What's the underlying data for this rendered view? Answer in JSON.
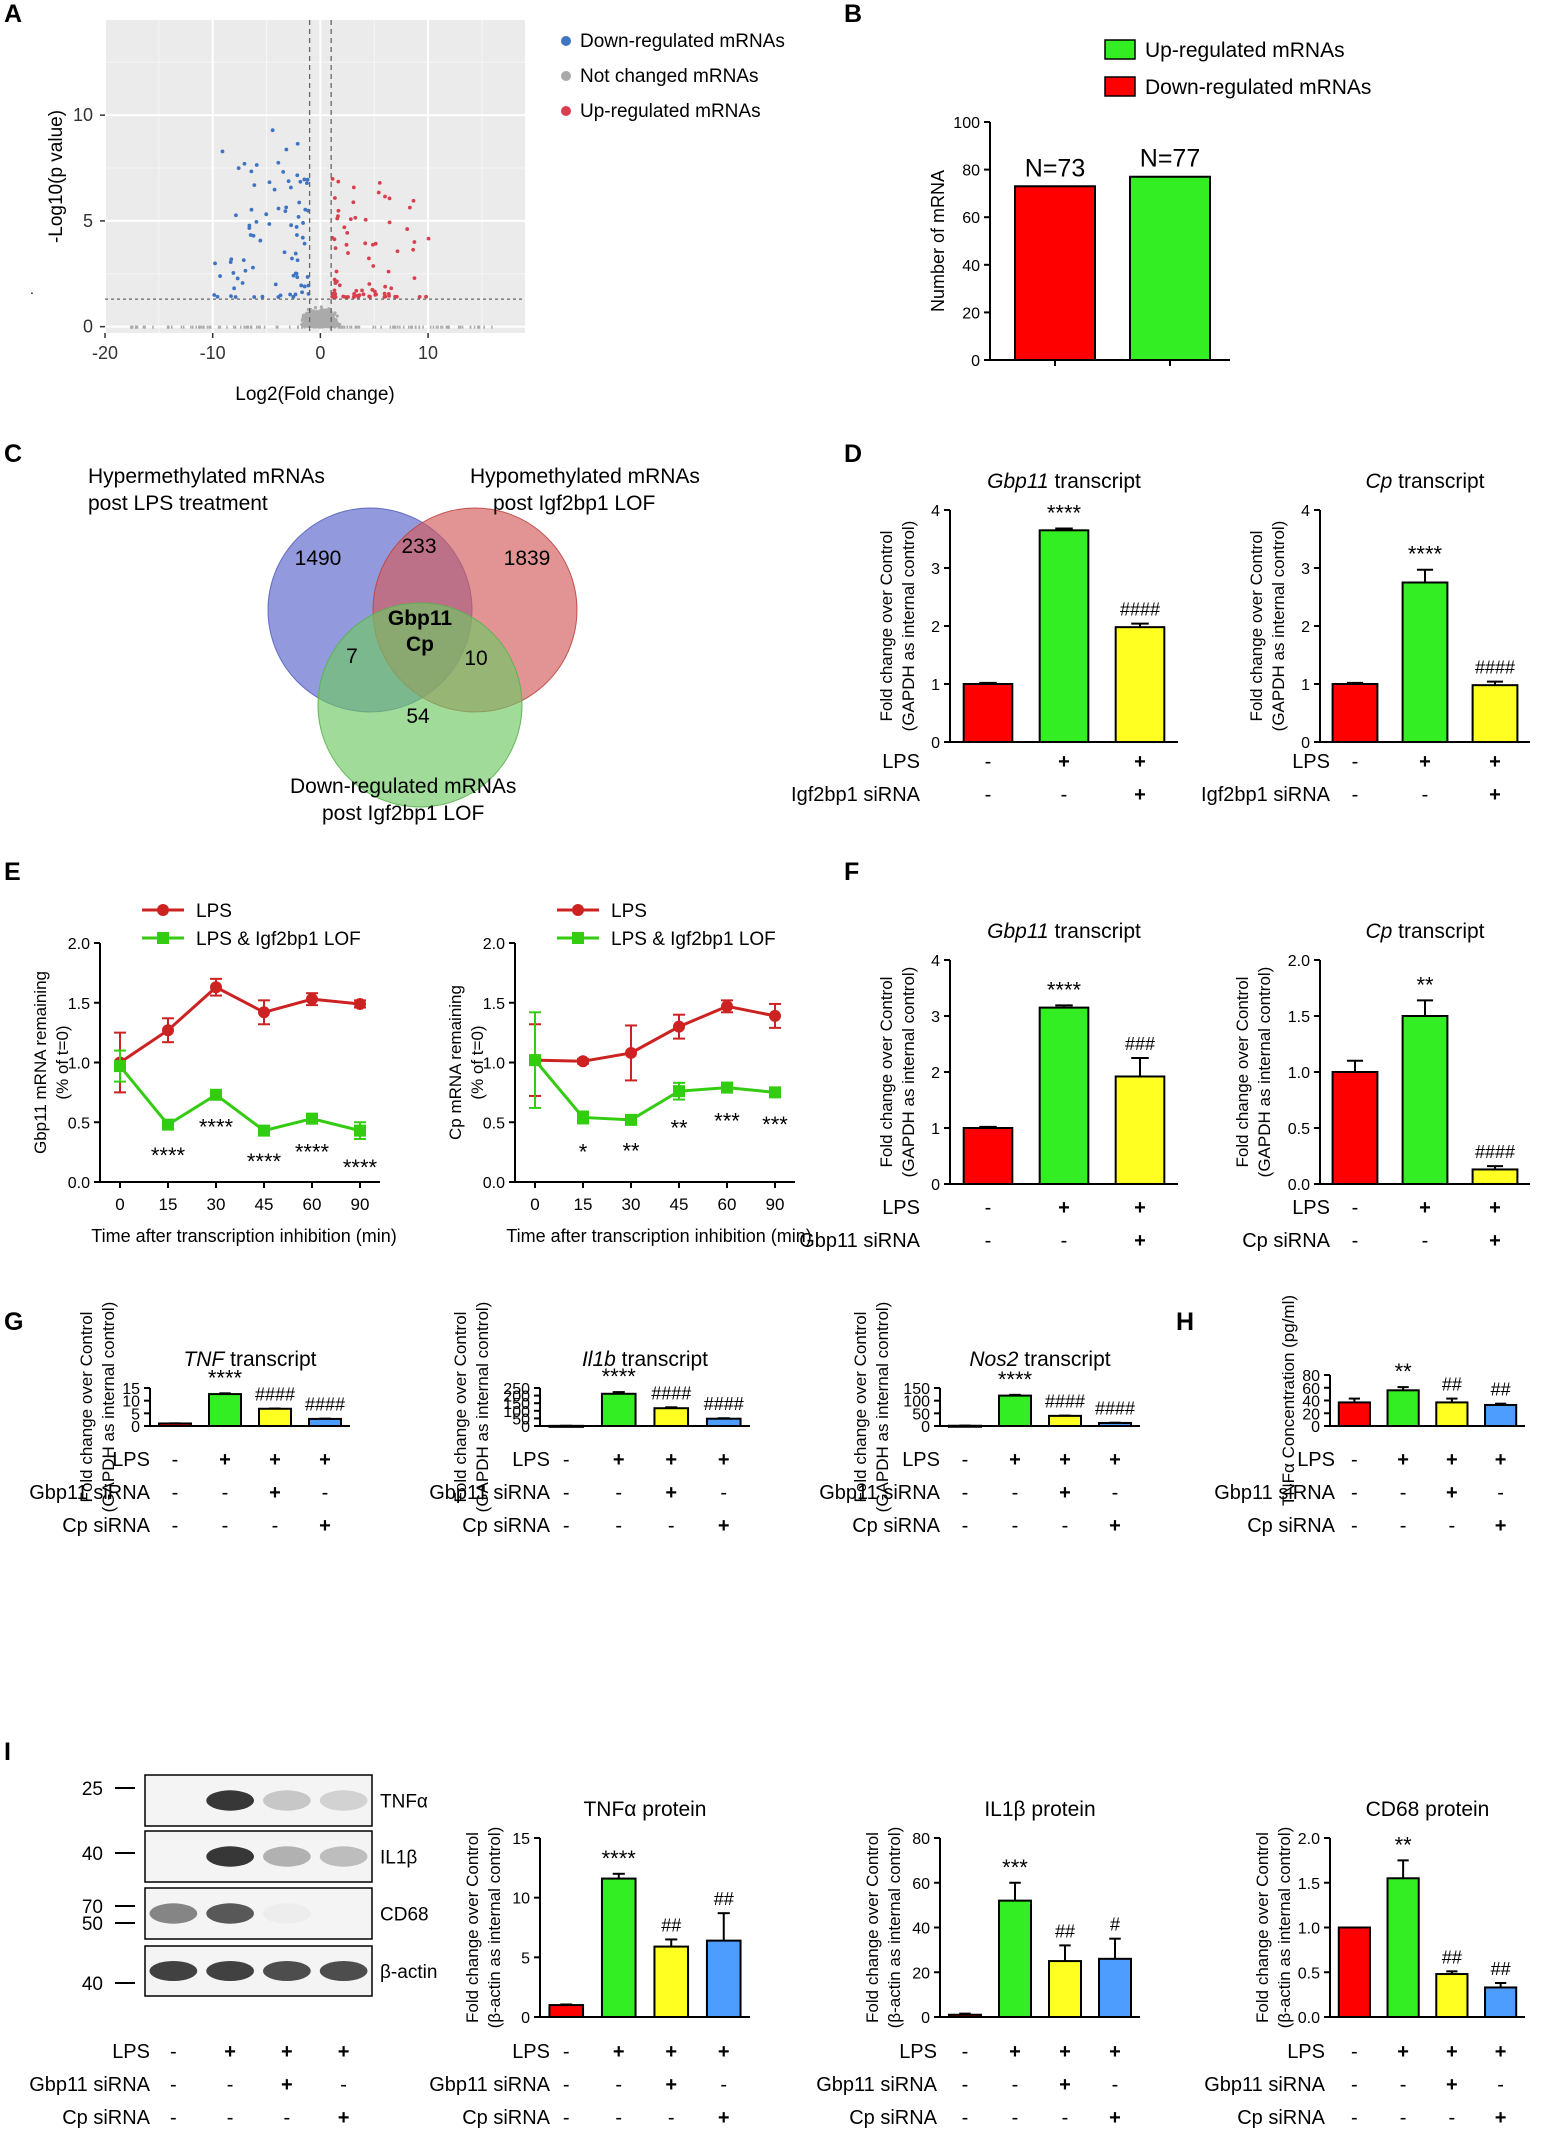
{
  "panel_letters": [
    "A",
    "B",
    "C",
    "D",
    "E",
    "F",
    "G",
    "H",
    "I"
  ],
  "colors": {
    "red": "#ff0000",
    "green": "#33ee22",
    "yellow": "#ffff22",
    "blue": "#4d9cff",
    "dark_red": "#cc2222",
    "line_green": "#33cc11",
    "down_blue": "#3f74c2",
    "up_red": "#d9404f",
    "grey": "#aaaaaa"
  },
  "chart_data": [
    {
      "id": "A",
      "type": "scatter",
      "xlabel": "Log2(Fold change)",
      "ylabel": "-Log10(p value)",
      "xlim": [
        -20,
        19
      ],
      "ylim": [
        -0.3,
        14.5
      ],
      "xticks": [
        -20,
        -10,
        0,
        10
      ],
      "yticks": [
        0,
        5,
        10
      ],
      "thresholds": {
        "fold_change_log2": [
          -1,
          1
        ],
        "p_value_log10": 1.3
      },
      "legend": [
        "Down-regulated mRNAs",
        "Not changed mRNAs",
        "Up-regulated mRNAs"
      ]
    },
    {
      "id": "B",
      "type": "bar",
      "ylabel": "Number of mRNA",
      "ylim": [
        0,
        100
      ],
      "yticks": [
        0,
        20,
        40,
        60,
        80,
        100
      ],
      "legend": [
        "Up-regulated mRNAs",
        "Down-regulated mRNAs"
      ],
      "values": [
        73,
        77
      ],
      "data_labels": [
        "N=73",
        "N=77"
      ],
      "bar_colors": [
        "red",
        "green"
      ]
    },
    {
      "id": "C",
      "type": "venn",
      "sets": [
        "Hypermethylated mRNAs post LPS treatment",
        "Hypomethylated mRNAs post Igf2bp1 LOF",
        "Down-regulated mRNAs post Igf2bp1 LOF"
      ],
      "set_label_lines": [
        [
          "Hypermethylated mRNAs",
          "post LPS treatment"
        ],
        [
          "Hypomethylated mRNAs",
          "post Igf2bp1 LOF"
        ],
        [
          "Down-regulated mRNAs",
          "post Igf2bp1 LOF"
        ]
      ],
      "regions": {
        "only_A": "1490",
        "only_B": "1839",
        "only_C": "54",
        "AB": "233",
        "AC": "7",
        "BC": "10",
        "ABC": [
          "Gbp11",
          "Cp"
        ]
      }
    },
    {
      "id": "D1",
      "type": "bar",
      "title_italic": "Gbp11",
      "title_rest": " transcript",
      "ylabel_lines": [
        "Fold change over Control",
        "(GAPDH as internal control)"
      ],
      "ylim": [
        0,
        4
      ],
      "yticks": [
        0,
        1,
        2,
        3,
        4
      ],
      "values": [
        1.0,
        3.65,
        1.98
      ],
      "errors": [
        0.02,
        0.03,
        0.06
      ],
      "bar_colors": [
        "red",
        "green",
        "yellow"
      ],
      "annotations": [
        "",
        "****",
        "####"
      ],
      "cond_labels": [
        "LPS",
        "Igf2bp1 siRNA"
      ],
      "cond_values": [
        [
          "-",
          "+",
          "+"
        ],
        [
          "-",
          "-",
          "+"
        ]
      ]
    },
    {
      "id": "D2",
      "type": "bar",
      "title_italic": "Cp",
      "title_rest": " transcript",
      "ylabel_lines": [
        "Fold change over Control",
        "(GAPDH as internal control)"
      ],
      "ylim": [
        0,
        4
      ],
      "yticks": [
        0,
        1,
        2,
        3,
        4
      ],
      "values": [
        1.0,
        2.75,
        0.98
      ],
      "errors": [
        0.02,
        0.22,
        0.06
      ],
      "bar_colors": [
        "red",
        "green",
        "yellow"
      ],
      "annotations": [
        "",
        "****",
        "####"
      ],
      "cond_labels": [
        "LPS",
        "Igf2bp1 siRNA"
      ],
      "cond_values": [
        [
          "-",
          "+",
          "+"
        ],
        [
          "-",
          "-",
          "+"
        ]
      ]
    },
    {
      "id": "E1",
      "type": "line",
      "xlabel": "Time after transcription inhibition (min)",
      "ylabel_lines": [
        "Gbp11 mRNA remaining",
        "(% of t=0)"
      ],
      "ylim": [
        0,
        2
      ],
      "yticks": [
        "0.0",
        "0.5",
        "1.0",
        "1.5",
        "2.0"
      ],
      "x": [
        "0",
        "15",
        "30",
        "45",
        "60",
        "90"
      ],
      "series": [
        {
          "name": "LPS",
          "values": [
            1.0,
            1.27,
            1.63,
            1.42,
            1.53,
            1.49
          ],
          "errors": [
            0.25,
            0.1,
            0.07,
            0.1,
            0.05,
            0.03
          ]
        },
        {
          "name": "LPS & Igf2bp1 LOF",
          "values": [
            0.97,
            0.48,
            0.73,
            0.43,
            0.53,
            0.43
          ],
          "errors": [
            0.13,
            0.02,
            0.03,
            0.02,
            0.04,
            0.07
          ]
        }
      ],
      "annotations": [
        "",
        "****",
        "****",
        "****",
        "****",
        "****"
      ]
    },
    {
      "id": "E2",
      "type": "line",
      "xlabel": "Time after transcription inhibition (min)",
      "ylabel_lines": [
        "Cp mRNA remaining",
        "(% of t=0)"
      ],
      "ylim": [
        0,
        2
      ],
      "yticks": [
        "0.0",
        "0.5",
        "1.0",
        "1.5",
        "2.0"
      ],
      "x": [
        "0",
        "15",
        "30",
        "45",
        "60",
        "90"
      ],
      "series": [
        {
          "name": "LPS",
          "values": [
            1.02,
            1.01,
            1.08,
            1.3,
            1.47,
            1.39
          ],
          "errors": [
            0.3,
            0.02,
            0.23,
            0.1,
            0.05,
            0.1
          ]
        },
        {
          "name": "LPS & Igf2bp1 LOF",
          "values": [
            1.02,
            0.54,
            0.52,
            0.76,
            0.79,
            0.75
          ],
          "errors": [
            0.4,
            0.05,
            0.02,
            0.07,
            0.04,
            0.03
          ]
        }
      ],
      "annotations": [
        "",
        "*",
        "**",
        "**",
        "***",
        "***"
      ]
    },
    {
      "id": "F1",
      "type": "bar",
      "title_italic": "Gbp11",
      "title_rest": " transcript",
      "ylabel_lines": [
        "Fold change over Control",
        "(GAPDH as internal control)"
      ],
      "ylim": [
        0,
        4
      ],
      "yticks": [
        0,
        1,
        2,
        3,
        4
      ],
      "values": [
        1.0,
        3.15,
        1.92
      ],
      "errors": [
        0.02,
        0.04,
        0.33
      ],
      "bar_colors": [
        "red",
        "green",
        "yellow"
      ],
      "annotations": [
        "",
        "****",
        "###"
      ],
      "cond_labels": [
        "LPS",
        "Gbp11 siRNA"
      ],
      "cond_values": [
        [
          "-",
          "+",
          "+"
        ],
        [
          "-",
          "-",
          "+"
        ]
      ]
    },
    {
      "id": "F2",
      "type": "bar",
      "title_italic": "Cp",
      "title_rest": " transcript",
      "ylabel_lines": [
        "Fold change over Control",
        "(GAPDH as internal control)"
      ],
      "ylim": [
        0,
        2
      ],
      "yticks": [
        "0.0",
        "0.5",
        "1.0",
        "1.5",
        "2.0"
      ],
      "values": [
        1.0,
        1.5,
        0.13
      ],
      "errors": [
        0.1,
        0.14,
        0.03
      ],
      "bar_colors": [
        "red",
        "green",
        "yellow"
      ],
      "annotations": [
        "",
        "**",
        "####"
      ],
      "cond_labels": [
        "LPS",
        "Cp siRNA"
      ],
      "cond_values": [
        [
          "-",
          "+",
          "+"
        ],
        [
          "-",
          "-",
          "+"
        ]
      ]
    },
    {
      "id": "G1",
      "type": "bar",
      "title_italic": "TNF",
      "title_rest": " transcript",
      "ylabel_lines": [
        "Fold change over Control",
        "(GAPDH as internal control)"
      ],
      "ylim": [
        0,
        15
      ],
      "yticks": [
        0,
        5,
        10,
        15
      ],
      "values": [
        1.0,
        12.6,
        6.8,
        2.8
      ],
      "errors": [
        0.05,
        0.3,
        0.1,
        0.1
      ],
      "bar_colors": [
        "red",
        "green",
        "yellow",
        "blue"
      ],
      "annotations": [
        "",
        "****",
        "####",
        "####"
      ],
      "cond_labels": [
        "LPS",
        "Gbp11 siRNA",
        "Cp siRNA"
      ],
      "cond_values": [
        [
          "-",
          "+",
          "+",
          "+"
        ],
        [
          "-",
          "-",
          "+",
          "-"
        ],
        [
          "-",
          "-",
          "-",
          "+"
        ]
      ]
    },
    {
      "id": "G2",
      "type": "bar",
      "title_italic": "Il1b",
      "title_rest": " transcript",
      "ylabel_lines": [
        "Fold change over Control",
        "(GAPDH as internal control)"
      ],
      "ylim": [
        0,
        250
      ],
      "yticks": [
        0,
        50,
        100,
        150,
        200,
        250
      ],
      "values": [
        1.0,
        212,
        117,
        48
      ],
      "errors": [
        0.5,
        11,
        6,
        3
      ],
      "bar_colors": [
        "red",
        "green",
        "yellow",
        "blue"
      ],
      "annotations": [
        "",
        "****",
        "####",
        "####"
      ],
      "cond_labels": [
        "LPS",
        "Gbp11 siRNA",
        "Cp siRNA"
      ],
      "cond_values": [
        [
          "-",
          "+",
          "+",
          "+"
        ],
        [
          "-",
          "-",
          "+",
          "-"
        ],
        [
          "-",
          "-",
          "-",
          "+"
        ]
      ]
    },
    {
      "id": "G3",
      "type": "bar",
      "title_italic": "Nos2",
      "title_rest": " transcript",
      "ylabel_lines": [
        "Fold change over Control",
        "(GAPDH as internal control)"
      ],
      "ylim": [
        0,
        150
      ],
      "yticks": [
        0,
        50,
        100,
        150
      ],
      "values": [
        1.0,
        120,
        40,
        12
      ],
      "errors": [
        0.5,
        3,
        1,
        1
      ],
      "bar_colors": [
        "red",
        "green",
        "yellow",
        "blue"
      ],
      "annotations": [
        "",
        "****",
        "####",
        "####"
      ],
      "cond_labels": [
        "LPS",
        "Gbp11 siRNA",
        "Cp siRNA"
      ],
      "cond_values": [
        [
          "-",
          "+",
          "+",
          "+"
        ],
        [
          "-",
          "-",
          "+",
          "-"
        ],
        [
          "-",
          "-",
          "-",
          "+"
        ]
      ]
    },
    {
      "id": "I",
      "type": "bar",
      "title_italic": "",
      "title_rest": "",
      "ylabel_lines": [
        "TNFα Concentration (pg/ml)"
      ],
      "ylim": [
        0,
        80
      ],
      "yticks": [
        0,
        20,
        40,
        60,
        80
      ],
      "values": [
        37,
        56,
        37,
        33
      ],
      "errors": [
        6,
        5,
        6,
        2
      ],
      "bar_colors": [
        "red",
        "green",
        "yellow",
        "blue"
      ],
      "annotations": [
        "",
        "**",
        "##",
        "##"
      ],
      "cond_labels": [
        "LPS",
        "Gbp11 siRNA",
        "Cp siRNA"
      ],
      "cond_values": [
        [
          "-",
          "+",
          "+",
          "+"
        ],
        [
          "-",
          "-",
          "+",
          "-"
        ],
        [
          "-",
          "-",
          "-",
          "+"
        ]
      ]
    },
    {
      "id": "H1",
      "type": "bar",
      "title_italic": "",
      "title_rest": "TNFα protein",
      "ylabel_lines": [
        "Fold change over Control",
        "(β-actin as internal control)"
      ],
      "ylim": [
        0,
        15
      ],
      "yticks": [
        0,
        5,
        10,
        15
      ],
      "values": [
        1.0,
        11.6,
        5.9,
        6.4
      ],
      "errors": [
        0.05,
        0.4,
        0.6,
        2.3
      ],
      "bar_colors": [
        "red",
        "green",
        "yellow",
        "blue"
      ],
      "annotations": [
        "",
        "****",
        "##",
        "##"
      ],
      "cond_labels": [
        "LPS",
        "Gbp11 siRNA",
        "Cp siRNA"
      ],
      "cond_values": [
        [
          "-",
          "+",
          "+",
          "+"
        ],
        [
          "-",
          "-",
          "+",
          "-"
        ],
        [
          "-",
          "-",
          "-",
          "+"
        ]
      ]
    },
    {
      "id": "H2",
      "type": "bar",
      "title_italic": "",
      "title_rest": "IL1β protein",
      "ylabel_lines": [
        "Fold change over Control",
        "(β-actin as internal control)"
      ],
      "ylim": [
        0,
        80
      ],
      "yticks": [
        0,
        20,
        40,
        60,
        80
      ],
      "values": [
        1.0,
        52,
        25,
        26
      ],
      "errors": [
        0.5,
        8,
        7,
        9
      ],
      "bar_colors": [
        "red",
        "green",
        "yellow",
        "blue"
      ],
      "annotations": [
        "",
        "***",
        "##",
        "#"
      ],
      "cond_labels": [
        "LPS",
        "Gbp11 siRNA",
        "Cp siRNA"
      ],
      "cond_values": [
        [
          "-",
          "+",
          "+",
          "+"
        ],
        [
          "-",
          "-",
          "+",
          "-"
        ],
        [
          "-",
          "-",
          "-",
          "+"
        ]
      ]
    },
    {
      "id": "H3",
      "type": "bar",
      "title_italic": "",
      "title_rest": "CD68 protein",
      "ylabel_lines": [
        "Fold change over Control",
        "(β-actin as internal control)"
      ],
      "ylim": [
        0,
        2
      ],
      "yticks": [
        "0.0",
        "0.5",
        "1.0",
        "1.5",
        "2.0"
      ],
      "values": [
        1.0,
        1.55,
        0.48,
        0.33
      ],
      "errors": [
        0.0,
        0.2,
        0.03,
        0.05
      ],
      "bar_colors": [
        "red",
        "green",
        "yellow",
        "blue"
      ],
      "annotations": [
        "",
        "**",
        "##",
        "##"
      ],
      "cond_labels": [
        "LPS",
        "Gbp11 siRNA",
        "Cp siRNA"
      ],
      "cond_values": [
        [
          "-",
          "+",
          "+",
          "+"
        ],
        [
          "-",
          "-",
          "+",
          "-"
        ],
        [
          "-",
          "-",
          "-",
          "+"
        ]
      ]
    }
  ],
  "blot": {
    "markers": [
      "25",
      "40",
      "70",
      "50",
      "40"
    ],
    "bands": [
      "TNFα",
      "IL1β",
      "CD68",
      "β-actin"
    ],
    "band_intensity": [
      [
        0.0,
        0.9,
        0.25,
        0.2
      ],
      [
        0.0,
        0.9,
        0.35,
        0.3
      ],
      [
        0.55,
        0.75,
        0.08,
        0.05
      ],
      [
        0.85,
        0.85,
        0.8,
        0.8
      ]
    ],
    "cond_labels": [
      "LPS",
      "Gbp11 siRNA",
      "Cp siRNA"
    ],
    "cond_values": [
      [
        "-",
        "+",
        "+",
        "+"
      ],
      [
        "-",
        "-",
        "+",
        "-"
      ],
      [
        "-",
        "-",
        "-",
        "+"
      ]
    ]
  }
}
